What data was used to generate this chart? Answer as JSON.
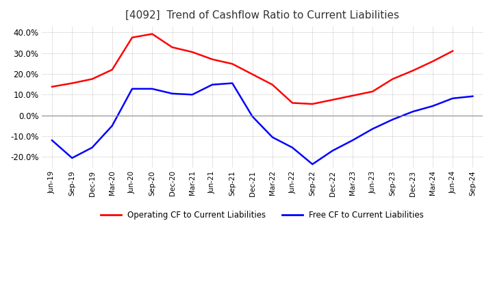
{
  "title": "[4092]  Trend of Cashflow Ratio to Current Liabilities",
  "title_fontsize": 11,
  "x_labels": [
    "Jun-19",
    "Sep-19",
    "Dec-19",
    "Mar-20",
    "Jun-20",
    "Sep-20",
    "Dec-20",
    "Mar-21",
    "Jun-21",
    "Sep-21",
    "Dec-21",
    "Mar-22",
    "Jun-22",
    "Sep-22",
    "Dec-22",
    "Mar-23",
    "Jun-23",
    "Sep-23",
    "Dec-23",
    "Mar-24",
    "Jun-24",
    "Sep-24"
  ],
  "operating_cf": [
    0.138,
    0.155,
    0.175,
    0.22,
    0.375,
    0.392,
    0.328,
    0.305,
    0.27,
    0.248,
    0.198,
    0.148,
    0.06,
    0.055,
    0.075,
    0.095,
    0.115,
    0.175,
    0.215,
    0.26,
    0.31,
    null
  ],
  "free_cf": [
    -0.12,
    -0.205,
    -0.155,
    -0.05,
    0.128,
    0.128,
    0.105,
    0.1,
    0.148,
    0.155,
    -0.005,
    -0.105,
    -0.155,
    -0.235,
    -0.17,
    -0.12,
    -0.065,
    -0.02,
    0.018,
    0.045,
    0.082,
    0.092
  ],
  "operating_color": "#FF0000",
  "free_color": "#0000FF",
  "ylim": [
    -0.25,
    0.43
  ],
  "yticks": [
    -0.2,
    -0.1,
    0.0,
    0.1,
    0.2,
    0.3,
    0.4
  ],
  "background_color": "#FFFFFF",
  "grid_color": "#AAAAAA",
  "legend_operating": "Operating CF to Current Liabilities",
  "legend_free": "Free CF to Current Liabilities"
}
